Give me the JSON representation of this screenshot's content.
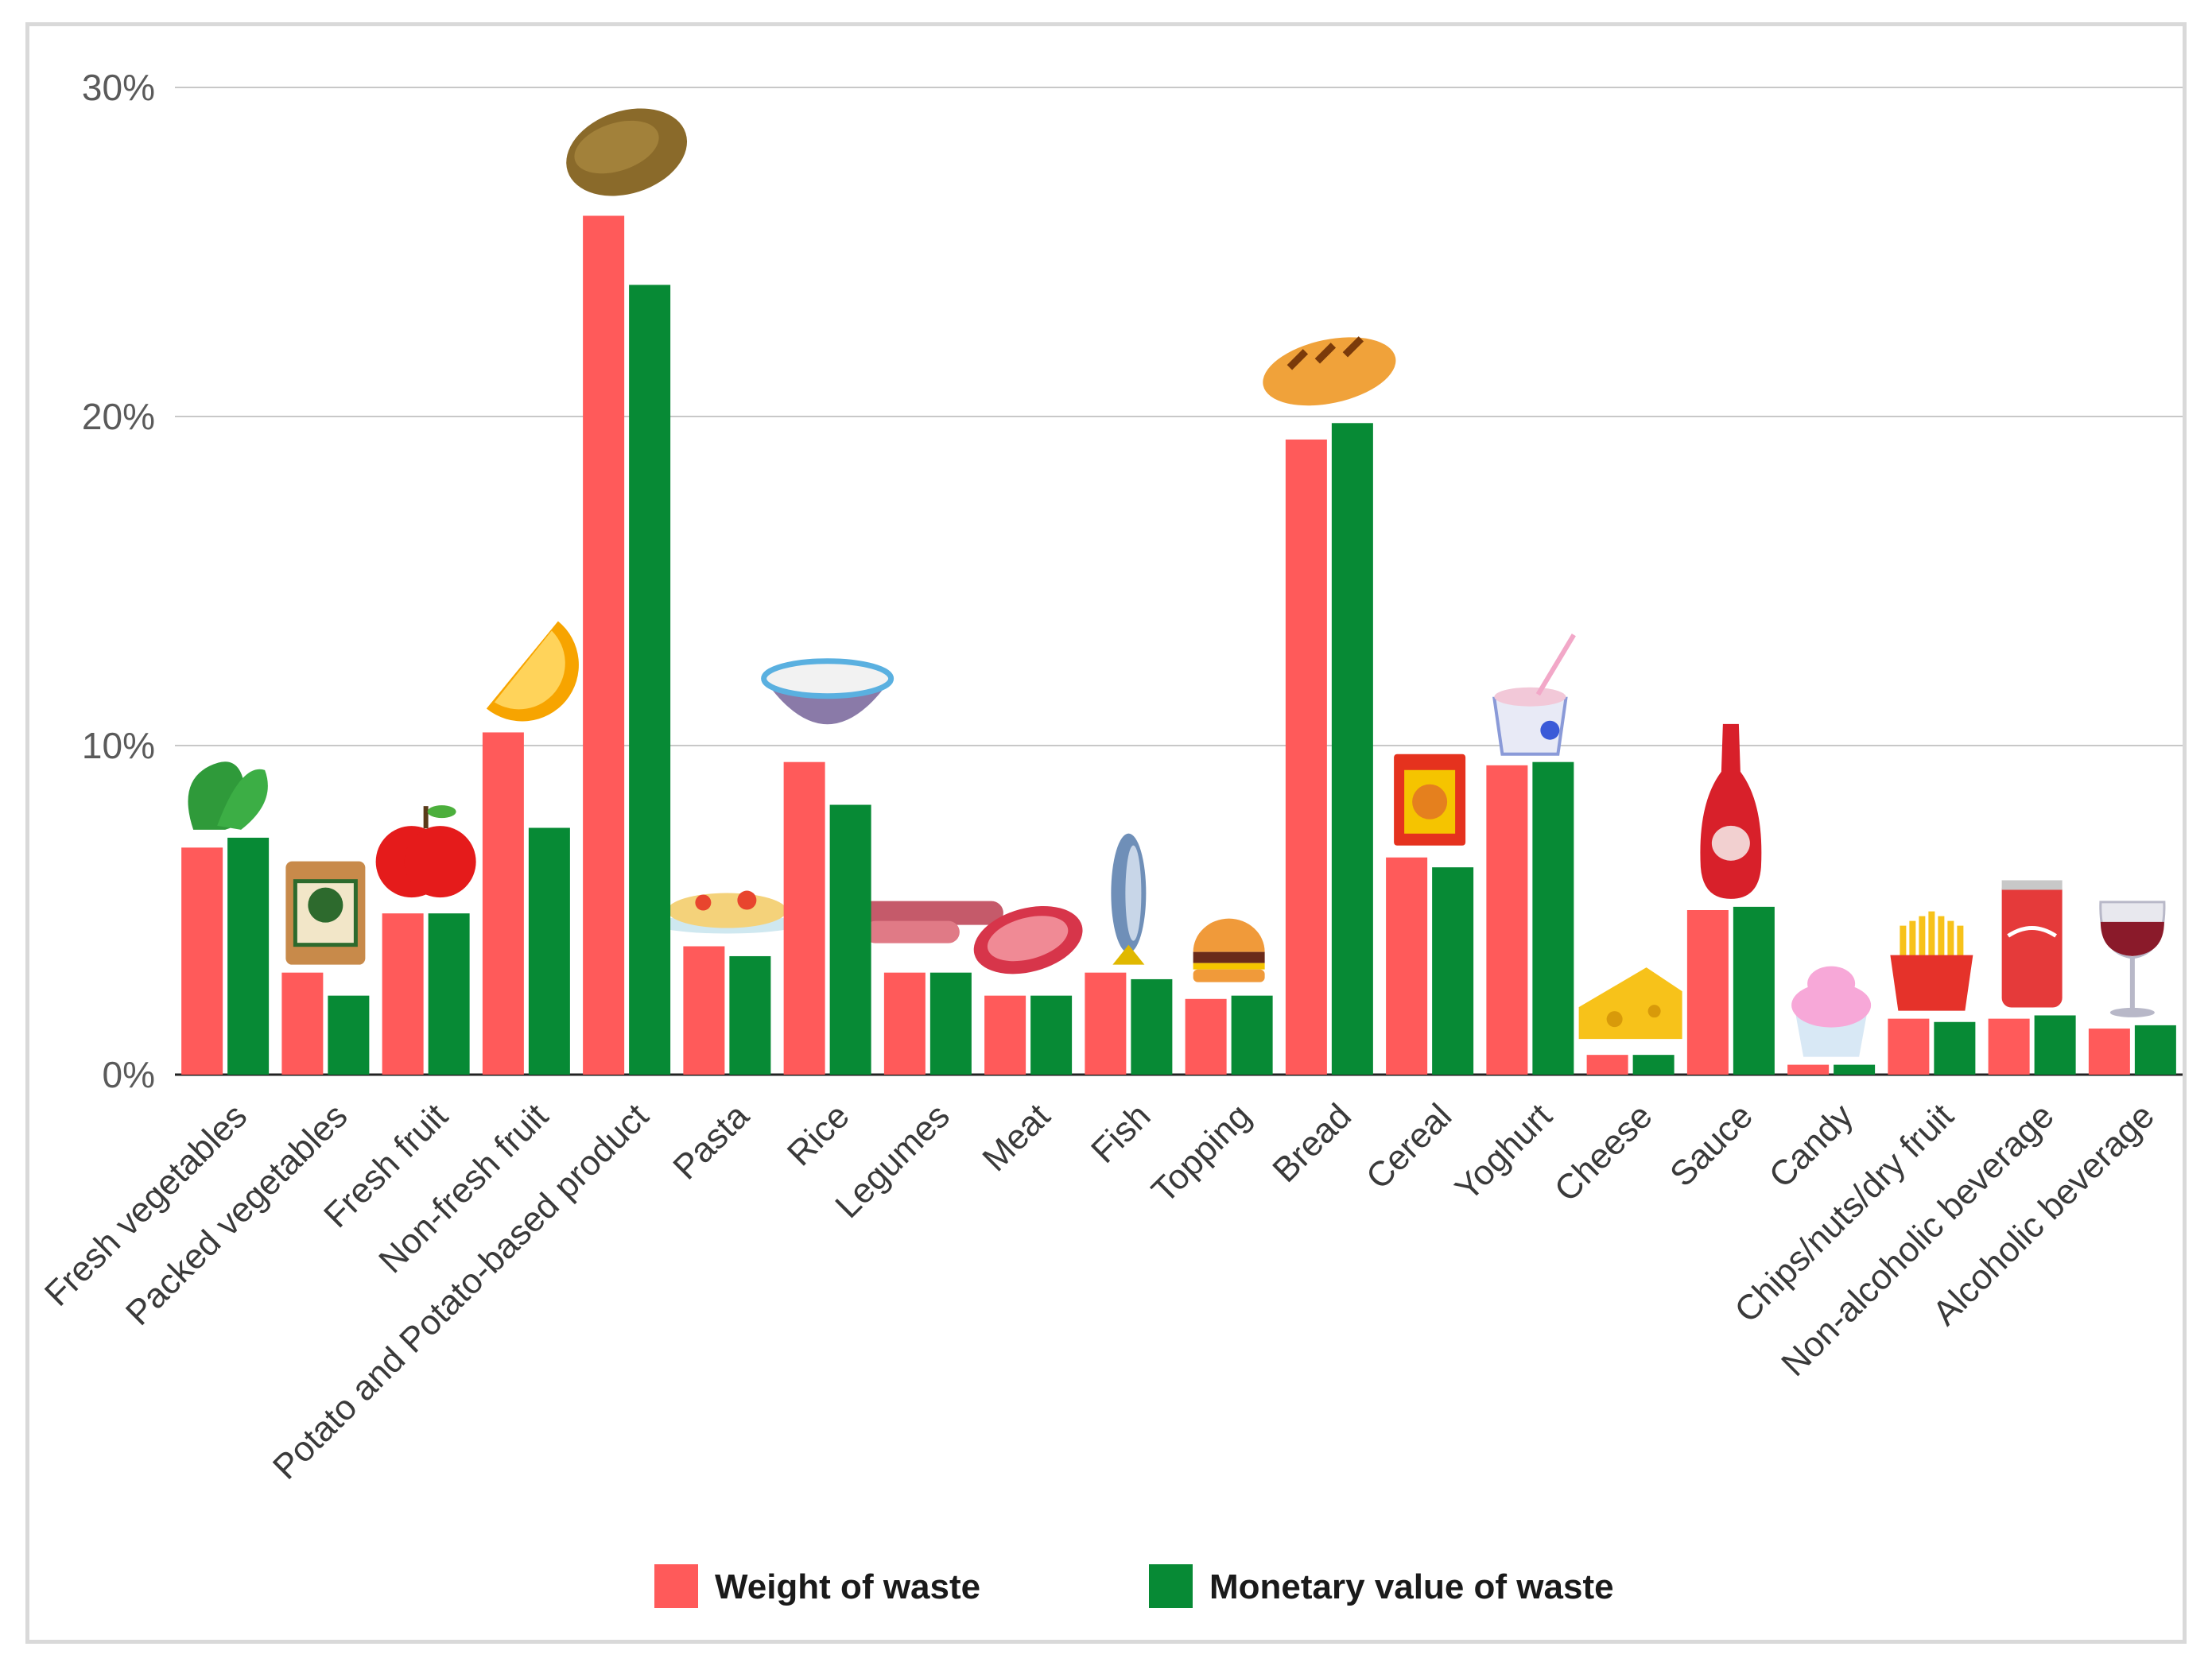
{
  "chart_data": {
    "type": "bar",
    "title": "",
    "xlabel": "",
    "ylabel": "",
    "ylim": [
      0,
      30
    ],
    "yticks": [
      0,
      10,
      20,
      30
    ],
    "ytick_labels": [
      "0%",
      "10%",
      "20%",
      "30%"
    ],
    "grid": true,
    "legend_position": "bottom-center",
    "categories": [
      "Fresh vegetables",
      "Packed vegetables",
      "Fresh fruit",
      "Non-fresh fruit",
      "Potato and Potato-based product",
      "Pasta",
      "Rice",
      "Legumes",
      "Meat",
      "Fish",
      "Topping",
      "Bread",
      "Cereal",
      "Yoghurt",
      "Cheese",
      "Sauce",
      "Candy",
      "Chips/nuts/dry fruit",
      "Non-alcoholic beverage",
      "Alcoholic beverage"
    ],
    "category_icons": [
      "lettuce-icon",
      "packed-vegetables-icon",
      "apple-icon",
      "orange-slice-icon",
      "potato-icon",
      "pasta-plate-icon",
      "rice-bowl-icon",
      "sausages-icon",
      "steak-icon",
      "fish-icon",
      "burger-icon",
      "bread-loaf-icon",
      "cereal-box-icon",
      "yoghurt-cup-icon",
      "cheese-icon",
      "ketchup-bottle-icon",
      "cupcake-icon",
      "fries-icon",
      "soda-can-icon",
      "wine-glass-icon"
    ],
    "series": [
      {
        "name": "Weight of waste",
        "color": "#ff5a5a",
        "values": [
          6.9,
          3.1,
          4.9,
          10.4,
          26.1,
          3.9,
          9.5,
          3.1,
          2.4,
          3.1,
          2.3,
          19.3,
          6.6,
          9.4,
          0.6,
          5.0,
          0.3,
          1.7,
          1.7,
          1.4
        ]
      },
      {
        "name": "Monetary value of waste",
        "color": "#078a35",
        "values": [
          7.2,
          2.4,
          4.9,
          7.5,
          24.0,
          3.6,
          8.2,
          3.1,
          2.4,
          2.9,
          2.4,
          19.8,
          6.3,
          9.5,
          0.6,
          5.1,
          0.3,
          1.6,
          1.8,
          1.5
        ]
      }
    ]
  },
  "legend": {
    "items": [
      {
        "label": "Weight of waste",
        "color": "#ff5a5a"
      },
      {
        "label": "Monetary value of waste",
        "color": "#078a35"
      }
    ]
  }
}
